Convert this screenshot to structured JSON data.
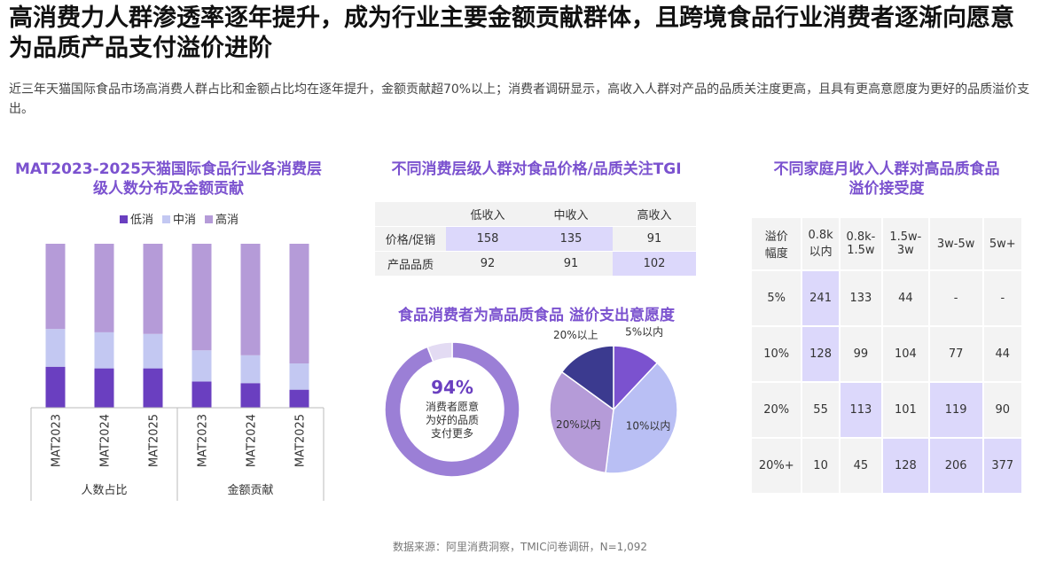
{
  "header": {
    "title": "高消费力人群渗透率逐年提升，成为行业主要金额贡献群体，且跨境食品行业消费者逐渐向愿意为品质产品支付溢价进阶",
    "subtitle": "近三年天猫国际食品市场高消费人群占比和金额占比均在逐年提升，金额贡献超70%以上；消费者调研显示，高收入人群对产品的品质关注度更高，且具有更高意愿度为更好的品质溢价支出。"
  },
  "chart_data": [
    {
      "type": "stacked-bar",
      "title": "MAT2023-2025天猫国际食品行业各消费层级人数分布及金额贡献",
      "categories": [
        "MAT2023",
        "MAT2024",
        "MAT2025",
        "MAT2023",
        "MAT2024",
        "MAT2025"
      ],
      "groups": [
        "人数占比",
        "金额贡献"
      ],
      "ylim": [
        0,
        100
      ],
      "series": [
        {
          "name": "低消",
          "color": "#6a3fc0",
          "values": [
            25,
            24,
            24,
            16,
            15,
            11
          ]
        },
        {
          "name": "中消",
          "color": "#c3c8f2",
          "values": [
            23,
            22,
            21,
            19,
            17,
            16
          ]
        },
        {
          "name": "高消",
          "color": "#b59bd8",
          "values": [
            52,
            54,
            55,
            65,
            68,
            73
          ]
        }
      ]
    },
    {
      "type": "donut",
      "title": "食品消费者为高品质食品 溢价支出意愿度",
      "values": [
        94,
        6
      ],
      "value_labels": [
        "94%",
        null
      ],
      "colors": [
        "#9b7fd6",
        "#e3dbf3"
      ],
      "center_text": "消费者愿意为好的品质支付更多"
    },
    {
      "type": "pie",
      "categories": [
        "5%以内",
        "10%以内",
        "20%以内",
        "20%以上"
      ],
      "values": [
        12,
        40,
        33,
        15
      ],
      "colors": [
        "#7b52cf",
        "#b9bff4",
        "#b59bd8",
        "#3b3a8f"
      ]
    }
  ],
  "tgi_table": {
    "title": "不同消费层级人群对食品价格/品质关注TGI",
    "columns": [
      "低收入",
      "中收入",
      "高收入"
    ],
    "rows": [
      {
        "label": "价格/促销",
        "values": [
          158,
          135,
          91
        ]
      },
      {
        "label": "产品品质",
        "values": [
          92,
          91,
          102
        ]
      }
    ],
    "highlight": [
      [
        0,
        0
      ],
      [
        0,
        1
      ],
      [
        1,
        2
      ]
    ]
  },
  "premium_table": {
    "title": "不同家庭月收入人群对高品质食品溢价接受度",
    "corner": "溢价\n幅度",
    "columns": [
      "0.8k\n以内",
      "0.8k-\n1.5w",
      "1.5w-\n3w",
      "3w-5w",
      "5w+"
    ],
    "rows": [
      {
        "label": "5%",
        "values": [
          241,
          133,
          44,
          "-",
          "-"
        ]
      },
      {
        "label": "10%",
        "values": [
          128,
          99,
          104,
          77,
          44
        ]
      },
      {
        "label": "20%",
        "values": [
          55,
          113,
          101,
          119,
          90
        ]
      },
      {
        "label": "20%+",
        "values": [
          10,
          45,
          128,
          206,
          377
        ]
      }
    ],
    "highlight": [
      [
        0,
        0
      ],
      [
        1,
        0
      ],
      [
        2,
        1
      ],
      [
        2,
        3
      ],
      [
        3,
        2
      ],
      [
        3,
        3
      ],
      [
        3,
        4
      ]
    ]
  },
  "footer": {
    "source": "数据来源：阿里消费洞察，TMIC问卷调研，N=1,092"
  }
}
